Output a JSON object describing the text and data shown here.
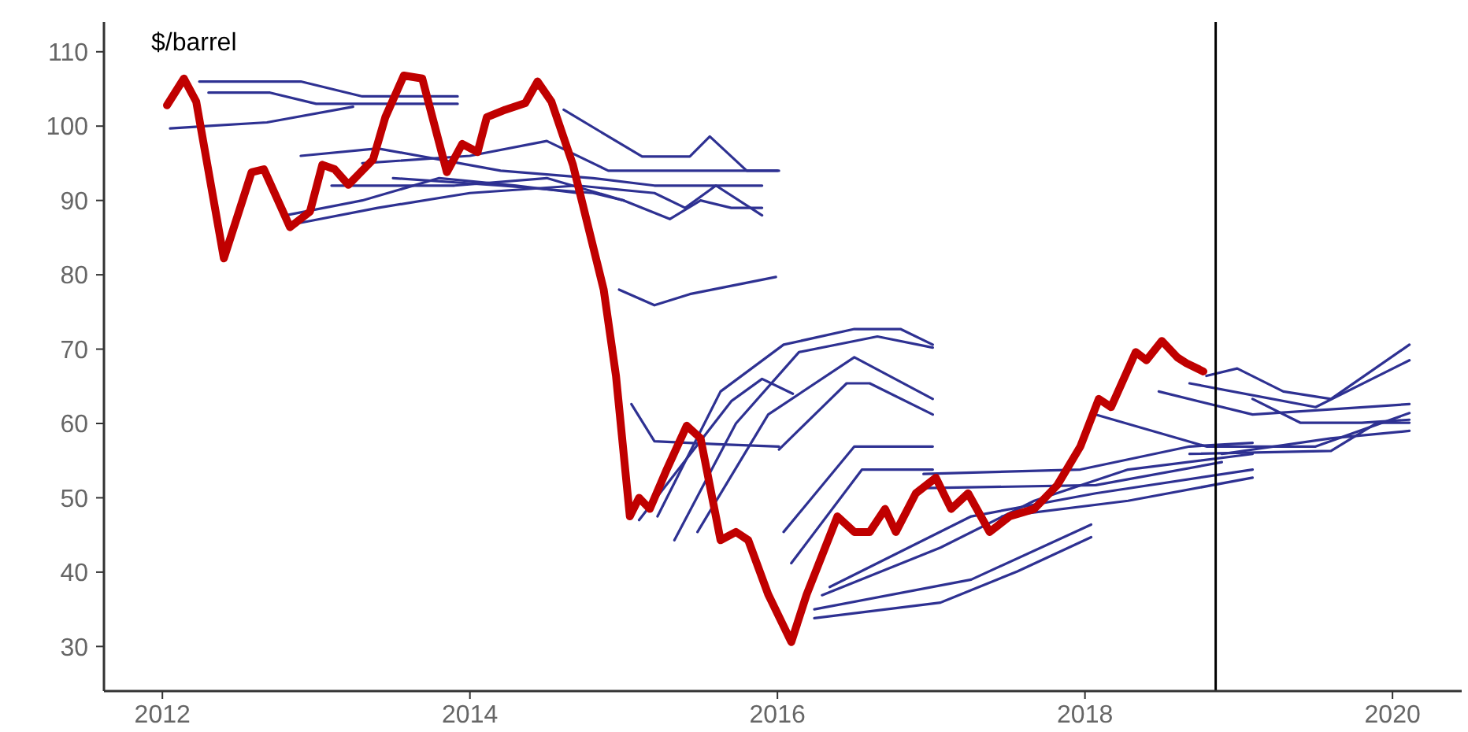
{
  "chart_data": {
    "type": "line",
    "ylabel": "$/barrel",
    "xlim": [
      2011.62,
      2020.45
    ],
    "xticks": [
      2012,
      2014,
      2016,
      2018,
      2020
    ],
    "ylim": [
      24,
      114
    ],
    "yticks": [
      30,
      40,
      50,
      60,
      70,
      80,
      90,
      100,
      110
    ],
    "grid": false,
    "line_style": "solid",
    "ref_lines": [
      {
        "axis": "x",
        "value": 2018.85,
        "color": "#000000"
      }
    ],
    "series": [
      {
        "color": "#2e3192",
        "x": [
          2012.24,
          2012.9,
          2013.3,
          2013.92
        ],
        "values": [
          106,
          106,
          104,
          104
        ]
      },
      {
        "color": "#2e3192",
        "x": [
          2012.3,
          2012.7,
          2013.0,
          2013.92
        ],
        "values": [
          104.5,
          104.5,
          103,
          103
        ]
      },
      {
        "color": "#2e3192",
        "x": [
          2012.05,
          2012.68,
          2013.24
        ],
        "values": [
          99.7,
          100.5,
          102.6
        ]
      },
      {
        "color": "#2e3192",
        "x": [
          2012.9,
          2013.4,
          2014.2,
          2014.8,
          2015.2,
          2015.5,
          2015.9
        ],
        "values": [
          96,
          97,
          94,
          93,
          92,
          92,
          92
        ]
      },
      {
        "color": "#2e3192",
        "x": [
          2012.8,
          2013.3,
          2013.8,
          2014.3,
          2014.7
        ],
        "values": [
          88,
          90,
          93,
          92,
          91
        ]
      },
      {
        "color": "#2e3192",
        "x": [
          2012.9,
          2013.4,
          2014.0,
          2014.7,
          2015.2,
          2015.4,
          2015.6,
          2015.9
        ],
        "values": [
          87,
          89,
          91,
          92,
          91,
          89,
          92,
          88
        ]
      },
      {
        "color": "#2e3192",
        "x": [
          2013.1,
          2013.9,
          2014.5,
          2015.0,
          2015.3,
          2015.5,
          2015.7,
          2015.9
        ],
        "values": [
          92,
          92,
          93,
          90,
          87.5,
          90,
          89,
          89
        ]
      },
      {
        "color": "#2e3192",
        "x": [
          2013.3,
          2014.0,
          2014.5,
          2014.9,
          2015.5,
          2016.0
        ],
        "values": [
          95,
          96,
          98,
          94,
          94,
          94
        ]
      },
      {
        "color": "#2e3192",
        "x": [
          2014.61,
          2015.12,
          2015.43,
          2015.56,
          2015.8,
          2016.01
        ],
        "values": [
          102.2,
          95.9,
          95.9,
          98.6,
          94,
          94
        ]
      },
      {
        "color": "#2e3192",
        "x": [
          2014.97,
          2015.2,
          2015.43,
          2015.99
        ],
        "values": [
          78,
          75.9,
          77.4,
          79.7
        ]
      },
      {
        "color": "#2e3192",
        "x": [
          2013.5,
          2014.2,
          2014.8,
          2015.0
        ],
        "values": [
          93,
          92,
          91,
          90
        ]
      },
      {
        "color": "#2e3192",
        "x": [
          2015.22,
          2015.63,
          2016.04,
          2016.5,
          2016.8,
          2017.01
        ],
        "values": [
          47.5,
          64.3,
          70.6,
          72.7,
          72.7,
          70.6
        ]
      },
      {
        "color": "#2e3192",
        "x": [
          2015.33,
          2015.73,
          2016.14,
          2016.65,
          2017.01
        ],
        "values": [
          44.3,
          60,
          69.6,
          71.7,
          70.2
        ]
      },
      {
        "color": "#2e3192",
        "x": [
          2015.48,
          2015.94,
          2016.5,
          2017.01
        ],
        "values": [
          45.4,
          61.2,
          68.9,
          63.3
        ]
      },
      {
        "color": "#2e3192",
        "x": [
          2016.01,
          2016.45,
          2016.6,
          2017.01
        ],
        "values": [
          56.5,
          65.4,
          65.4,
          61.2
        ]
      },
      {
        "color": "#2e3192",
        "x": [
          2016.04,
          2016.5,
          2017.01
        ],
        "values": [
          45.4,
          56.9,
          56.9
        ]
      },
      {
        "color": "#2e3192",
        "x": [
          2016.09,
          2016.55,
          2017.01
        ],
        "values": [
          41.2,
          53.8,
          53.8
        ]
      },
      {
        "color": "#2e3192",
        "x": [
          2015.05,
          2015.2,
          2015.61,
          2016.01
        ],
        "values": [
          62.6,
          57.6,
          57.2,
          56.9
        ]
      },
      {
        "color": "#2e3192",
        "x": [
          2015.1,
          2015.4,
          2015.7,
          2015.9,
          2016.1
        ],
        "values": [
          47,
          55,
          63,
          66,
          64
        ]
      },
      {
        "color": "#2e3192",
        "x": [
          2016.24,
          2017.06,
          2017.56,
          2018.04
        ],
        "values": [
          33.8,
          35.9,
          40.1,
          44.7
        ]
      },
      {
        "color": "#2e3192",
        "x": [
          2016.24,
          2017.26,
          2018.04
        ],
        "values": [
          35,
          39,
          46.4
        ]
      },
      {
        "color": "#2e3192",
        "x": [
          2016.29,
          2017.06,
          2017.67,
          2018.28,
          2019.09
        ],
        "values": [
          36.9,
          43.3,
          49.6,
          53.8,
          55.9
        ]
      },
      {
        "color": "#2e3192",
        "x": [
          2016.34,
          2017.26,
          2018.07,
          2019.09
        ],
        "values": [
          38,
          47.5,
          50.6,
          53.8
        ]
      },
      {
        "color": "#2e3192",
        "x": [
          2016.95,
          2018.07,
          2018.89
        ],
        "values": [
          51.3,
          51.7,
          54.8
        ]
      },
      {
        "color": "#2e3192",
        "x": [
          2016.95,
          2017.97,
          2018.68,
          2019.09
        ],
        "values": [
          53.2,
          53.8,
          56.9,
          57.4
        ]
      },
      {
        "color": "#2e3192",
        "x": [
          2017.46,
          2018.28,
          2019.09
        ],
        "values": [
          47.5,
          49.6,
          52.7
        ]
      },
      {
        "color": "#2e3192",
        "x": [
          2019.09,
          2019.4,
          2019.8,
          2020.11
        ],
        "values": [
          63.3,
          60.1,
          60.1,
          60.5
        ]
      },
      {
        "color": "#2e3192",
        "x": [
          2018.79,
          2018.99,
          2019.29,
          2019.6,
          2020.11
        ],
        "values": [
          66.4,
          67.4,
          64.3,
          63.3,
          70.6
        ]
      },
      {
        "color": "#2e3192",
        "x": [
          2018.68,
          2019.5,
          2020.11
        ],
        "values": [
          65.4,
          62.2,
          68.5
        ]
      },
      {
        "color": "#2e3192",
        "x": [
          2018.48,
          2019.09,
          2020.11
        ],
        "values": [
          64.3,
          61.2,
          62.6
        ]
      },
      {
        "color": "#2e3192",
        "x": [
          2018.07,
          2018.79,
          2019.5,
          2020.11
        ],
        "values": [
          61.2,
          56.9,
          56.9,
          61.4
        ]
      },
      {
        "color": "#2e3192",
        "x": [
          2018.68,
          2019.6,
          2019.9,
          2020.11
        ],
        "values": [
          55.9,
          56.3,
          60.1,
          60.1
        ]
      },
      {
        "color": "#2e3192",
        "x": [
          2018.89,
          2019.6,
          2020.11
        ],
        "values": [
          55.9,
          58,
          59
        ]
      },
      {
        "color": "#c00000",
        "x": [
          2012.03,
          2012.14,
          2012.22,
          2012.4,
          2012.58,
          2012.66,
          2012.83,
          2012.96,
          2013.04,
          2013.12,
          2013.21,
          2013.37,
          2013.45,
          2013.57,
          2013.69,
          2013.85,
          2013.95,
          2014.05,
          2014.11,
          2014.23,
          2014.36,
          2014.44,
          2014.53,
          2014.67,
          2014.87,
          2014.95,
          2015.04,
          2015.1,
          2015.17,
          2015.28,
          2015.41,
          2015.5,
          2015.63,
          2015.73,
          2015.81,
          2015.94,
          2016.09,
          2016.19,
          2016.39,
          2016.5,
          2016.6,
          2016.7,
          2016.77,
          2016.9,
          2017.03,
          2017.13,
          2017.24,
          2017.38,
          2017.51,
          2017.67,
          2017.82,
          2017.97,
          2018.09,
          2018.17,
          2018.33,
          2018.4,
          2018.5,
          2018.6,
          2018.66,
          2018.77
        ],
        "values": [
          102.8,
          106.4,
          103.3,
          82.2,
          93.8,
          94.2,
          86.4,
          88.5,
          94.8,
          94.2,
          92.1,
          95.5,
          101.2,
          106.8,
          106.4,
          93.8,
          97.6,
          96.5,
          101.2,
          102.2,
          103.1,
          106,
          103.3,
          94.8,
          78,
          66.4,
          47.5,
          50,
          48.5,
          53.8,
          59.7,
          58,
          44.3,
          45.4,
          44.3,
          37,
          30.6,
          37,
          47.5,
          45.4,
          45.4,
          48.5,
          45.4,
          50.6,
          52.7,
          48.5,
          50.6,
          45.4,
          47.5,
          48.5,
          51.7,
          56.9,
          63.3,
          62.2,
          69.6,
          68.5,
          71.1,
          68.9,
          68.1,
          67
        ]
      }
    ]
  }
}
